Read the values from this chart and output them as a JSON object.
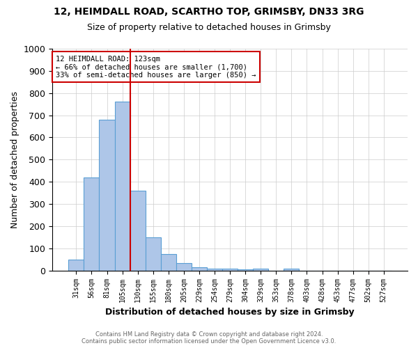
{
  "title1": "12, HEIMDALL ROAD, SCARTHO TOP, GRIMSBY, DN33 3RG",
  "title2": "Size of property relative to detached houses in Grimsby",
  "xlabel": "Distribution of detached houses by size in Grimsby",
  "ylabel": "Number of detached properties",
  "footer1": "Contains HM Land Registry data © Crown copyright and database right 2024.",
  "footer2": "Contains public sector information licensed under the Open Government Licence v3.0.",
  "bin_labels": [
    "31sqm",
    "56sqm",
    "81sqm",
    "105sqm",
    "130sqm",
    "155sqm",
    "180sqm",
    "205sqm",
    "229sqm",
    "254sqm",
    "279sqm",
    "304sqm",
    "329sqm",
    "353sqm",
    "378sqm",
    "403sqm",
    "428sqm",
    "453sqm",
    "477sqm",
    "502sqm",
    "527sqm"
  ],
  "bar_heights": [
    50,
    420,
    680,
    760,
    360,
    150,
    75,
    35,
    15,
    10,
    10,
    5,
    8,
    0,
    8,
    0,
    0,
    0,
    0,
    0,
    0
  ],
  "bar_color": "#aec6e8",
  "bar_edge_color": "#5a9fd4",
  "vline_x_index": 4,
  "vline_color": "#cc0000",
  "annotation_lines": [
    "12 HEIMDALL ROAD: 123sqm",
    "← 66% of detached houses are smaller (1,700)",
    "33% of semi-detached houses are larger (850) →"
  ],
  "annotation_box_color": "#ffffff",
  "annotation_box_edge": "#cc0000",
  "ylim": [
    0,
    1000
  ],
  "yticks": [
    0,
    100,
    200,
    300,
    400,
    500,
    600,
    700,
    800,
    900,
    1000
  ],
  "background_color": "#ffffff",
  "grid_color": "#cccccc"
}
